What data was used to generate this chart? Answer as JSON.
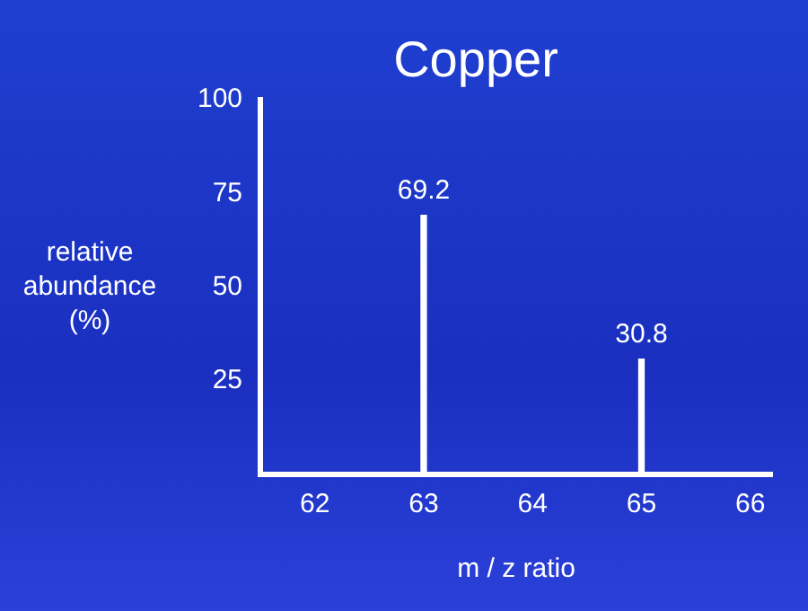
{
  "chart_data": {
    "type": "bar",
    "title": "Copper",
    "xlabel": "m / z ratio",
    "ylabel": "relative abundance (%)",
    "x": [
      63,
      65
    ],
    "values": [
      69.2,
      30.8
    ],
    "color": "#ffffff",
    "data_labels": true,
    "xlim": [
      61.5,
      66.2
    ],
    "xticks": [
      62,
      63,
      64,
      65,
      66
    ],
    "ylim": [
      0,
      100
    ],
    "yticks": [
      25,
      50,
      75,
      100
    ],
    "grid": false,
    "legend": false
  }
}
